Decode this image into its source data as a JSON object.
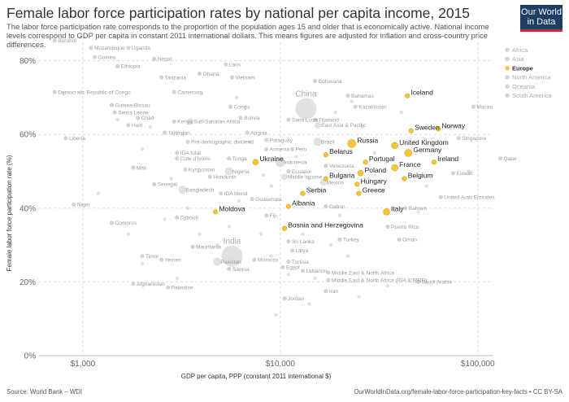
{
  "title": "Female labor force participation rates by national per capita income, 2015",
  "subtitle": "The labor force participation rate corresponds to the proportion of the population ages 15 and older that is economically active. National income levels correspond to GDP per capita in constant 2011 international dollars. This means figures are adjusted for inflation and cross-country price differences.",
  "logo": {
    "line1": "Our World",
    "line2": "in Data"
  },
  "footer": {
    "source": "Source: World Bank – WDI",
    "url": "OurWorldInData.org/female-labor-force-participation-key-facts • CC BY-SA"
  },
  "colors": {
    "europe": "#f5c53c",
    "europe_stroke": "#d9a51f",
    "other": "#c8c8c8",
    "grid": "#dcdcdc"
  },
  "chart_data": {
    "type": "scatter",
    "xlabel": "GDP per capita, PPP (constant 2011 international $)",
    "ylabel": "Female labor force participation rate (%)",
    "x_scale": "log",
    "xlim": [
      600,
      120000
    ],
    "ylim": [
      0,
      85
    ],
    "x_ticks": [
      {
        "v": 1000,
        "label": "$1,000"
      },
      {
        "v": 10000,
        "label": "$10,000"
      },
      {
        "v": 100000,
        "label": "$100,000"
      }
    ],
    "y_ticks": [
      {
        "v": 0,
        "label": "0%"
      },
      {
        "v": 20,
        "label": "20%"
      },
      {
        "v": 40,
        "label": "40%"
      },
      {
        "v": 60,
        "label": "60%"
      },
      {
        "v": 80,
        "label": "80%"
      }
    ],
    "legend": {
      "position": "right",
      "items": [
        "Africa",
        "Asia",
        "Europe",
        "North America",
        "Oceania",
        "South America"
      ],
      "highlight": "Europe"
    },
    "europe": [
      {
        "name": "Iceland",
        "x": 44000,
        "y": 70.5
      },
      {
        "name": "Sweden",
        "x": 46000,
        "y": 61
      },
      {
        "name": "Norway",
        "x": 63000,
        "y": 61.5
      },
      {
        "name": "Russia",
        "x": 23000,
        "y": 57.5
      },
      {
        "name": "United Kingdom",
        "x": 38000,
        "y": 57
      },
      {
        "name": "Germany",
        "x": 44500,
        "y": 55
      },
      {
        "name": "Belarus",
        "x": 17000,
        "y": 54.5
      },
      {
        "name": "Portugal",
        "x": 27000,
        "y": 52.5
      },
      {
        "name": "Ireland",
        "x": 60000,
        "y": 52.5
      },
      {
        "name": "France",
        "x": 38000,
        "y": 51
      },
      {
        "name": "Ukraine",
        "x": 7500,
        "y": 52.5
      },
      {
        "name": "Poland",
        "x": 25500,
        "y": 49.5
      },
      {
        "name": "Belgium",
        "x": 42500,
        "y": 48
      },
      {
        "name": "Bulgaria",
        "x": 17000,
        "y": 48
      },
      {
        "name": "Hungary",
        "x": 24500,
        "y": 46.5
      },
      {
        "name": "Greece",
        "x": 25000,
        "y": 44
      },
      {
        "name": "Serbia",
        "x": 13000,
        "y": 44
      },
      {
        "name": "Albania",
        "x": 11000,
        "y": 40.5
      },
      {
        "name": "Moldova",
        "x": 4700,
        "y": 39
      },
      {
        "name": "Italy",
        "x": 34500,
        "y": 39
      },
      {
        "name": "Bosnia and Herzegovina",
        "x": 10500,
        "y": 34.5
      }
    ],
    "other_labeled": [
      {
        "name": "Burundi",
        "x": 720,
        "y": 85.5
      },
      {
        "name": "Mozambique",
        "x": 1100,
        "y": 83.5
      },
      {
        "name": "Uganda",
        "x": 1700,
        "y": 83.5
      },
      {
        "name": "Guinea",
        "x": 1150,
        "y": 81
      },
      {
        "name": "Nepal",
        "x": 2300,
        "y": 80.5
      },
      {
        "name": "Laos",
        "x": 5300,
        "y": 79
      },
      {
        "name": "Ethiopia",
        "x": 1500,
        "y": 78.5
      },
      {
        "name": "Ghana",
        "x": 3900,
        "y": 76.5
      },
      {
        "name": "Tanzania",
        "x": 2500,
        "y": 75.5
      },
      {
        "name": "Vietnam",
        "x": 5700,
        "y": 75.5
      },
      {
        "name": "Botswana",
        "x": 15000,
        "y": 74.5
      },
      {
        "name": "Democratic Republic of Congo",
        "x": 720,
        "y": 71.5
      },
      {
        "name": "Cameroon",
        "x": 2900,
        "y": 71.5
      },
      {
        "name": "Bahamas",
        "x": 22000,
        "y": 70.5
      },
      {
        "name": "Guinea-Bissau",
        "x": 1400,
        "y": 68
      },
      {
        "name": "Congo",
        "x": 5600,
        "y": 67.5
      },
      {
        "name": "Kazakhstan",
        "x": 24000,
        "y": 67.5
      },
      {
        "name": "Macao",
        "x": 95000,
        "y": 67.5
      },
      {
        "name": "Sierra Leone",
        "x": 1450,
        "y": 66
      },
      {
        "name": "China",
        "x": 13500,
        "y": 67
      },
      {
        "name": "Chad",
        "x": 1900,
        "y": 64.5
      },
      {
        "name": "Bolivia",
        "x": 6300,
        "y": 64.5
      },
      {
        "name": "Kenya",
        "x": 2900,
        "y": 63.5
      },
      {
        "name": "Sub-Saharan Africa",
        "x": 3500,
        "y": 63.5
      },
      {
        "name": "Saint Lucia",
        "x": 11000,
        "y": 64
      },
      {
        "name": "Thailand",
        "x": 15000,
        "y": 64
      },
      {
        "name": "Haiti",
        "x": 1700,
        "y": 62.5
      },
      {
        "name": "East Asia & Pacific",
        "x": 15500,
        "y": 62.5
      },
      {
        "name": "Tajikistan",
        "x": 2600,
        "y": 60.5
      },
      {
        "name": "Angola",
        "x": 6800,
        "y": 60.5
      },
      {
        "name": "Paraguay",
        "x": 8500,
        "y": 58.5
      },
      {
        "name": "Singapore",
        "x": 80000,
        "y": 59
      },
      {
        "name": "Liberia",
        "x": 820,
        "y": 59
      },
      {
        "name": "Pre-demographic dividend",
        "x": 3400,
        "y": 58
      },
      {
        "name": "Brazil",
        "x": 15500,
        "y": 58
      },
      {
        "name": "Armenia",
        "x": 8500,
        "y": 56
      },
      {
        "name": "Peru",
        "x": 11500,
        "y": 56
      },
      {
        "name": "Qatar",
        "x": 130000,
        "y": 53.5
      },
      {
        "name": "IDA total",
        "x": 3000,
        "y": 55
      },
      {
        "name": "Cote d'Ivoire",
        "x": 3000,
        "y": 53.5
      },
      {
        "name": "Tonga",
        "x": 5500,
        "y": 53.5
      },
      {
        "name": "Indonesia",
        "x": 10000,
        "y": 52.5
      },
      {
        "name": "Venezuela",
        "x": 17000,
        "y": 51.5
      },
      {
        "name": "Mali",
        "x": 1800,
        "y": 51
      },
      {
        "name": "Kyrgyzstan",
        "x": 3300,
        "y": 50.5
      },
      {
        "name": "Nigeria",
        "x": 5500,
        "y": 50
      },
      {
        "name": "Ecuador",
        "x": 11000,
        "y": 50
      },
      {
        "name": "Kuwait",
        "x": 75000,
        "y": 49.5
      },
      {
        "name": "Honduras",
        "x": 4400,
        "y": 48.5
      },
      {
        "name": "Middle income",
        "x": 10500,
        "y": 48.5
      },
      {
        "name": "Mexico",
        "x": 16500,
        "y": 47
      },
      {
        "name": "Senegal",
        "x": 2300,
        "y": 46.5
      },
      {
        "name": "Bangladesh",
        "x": 3200,
        "y": 45
      },
      {
        "name": "IDA blend",
        "x": 5000,
        "y": 44
      },
      {
        "name": "Guatemala",
        "x": 7200,
        "y": 42.5
      },
      {
        "name": "United Arab Emirates",
        "x": 65000,
        "y": 43
      },
      {
        "name": "Niger",
        "x": 900,
        "y": 41
      },
      {
        "name": "Gabon",
        "x": 17000,
        "y": 40.5
      },
      {
        "name": "Bahrain",
        "x": 43000,
        "y": 40
      },
      {
        "name": "Fiji",
        "x": 8500,
        "y": 38
      },
      {
        "name": "Djibouti",
        "x": 3000,
        "y": 37.5
      },
      {
        "name": "Comoros",
        "x": 1400,
        "y": 36
      },
      {
        "name": "Puerto Rico",
        "x": 35000,
        "y": 35
      },
      {
        "name": "Sri Lanka",
        "x": 11000,
        "y": 31
      },
      {
        "name": "Turkey",
        "x": 20000,
        "y": 31.5
      },
      {
        "name": "Oman",
        "x": 40000,
        "y": 31.5
      },
      {
        "name": "India",
        "x": 5700,
        "y": 27
      },
      {
        "name": "Mauritania",
        "x": 3600,
        "y": 29.5
      },
      {
        "name": "Libya",
        "x": 11500,
        "y": 28.5
      },
      {
        "name": "Timor",
        "x": 2000,
        "y": 27
      },
      {
        "name": "Yemen",
        "x": 2500,
        "y": 26
      },
      {
        "name": "Pakistan",
        "x": 4800,
        "y": 25.5
      },
      {
        "name": "Morocco",
        "x": 7400,
        "y": 26
      },
      {
        "name": "Tunisia",
        "x": 11000,
        "y": 25.5
      },
      {
        "name": "Samoa",
        "x": 5500,
        "y": 23.5
      },
      {
        "name": "Egypt",
        "x": 10300,
        "y": 24
      },
      {
        "name": "Lebanon",
        "x": 13000,
        "y": 23
      },
      {
        "name": "Middle East & North Africa",
        "x": 17500,
        "y": 22.5
      },
      {
        "name": "Middle East & North Africa (IDA & IBRD)",
        "x": 17500,
        "y": 20.5
      },
      {
        "name": "Saudi Arabia",
        "x": 50000,
        "y": 20
      },
      {
        "name": "Afghanistan",
        "x": 1800,
        "y": 19.5
      },
      {
        "name": "Palestine",
        "x": 2700,
        "y": 18.5
      },
      {
        "name": "Iran",
        "x": 17000,
        "y": 17.5
      },
      {
        "name": "Jordan",
        "x": 10500,
        "y": 15.5
      }
    ]
  }
}
